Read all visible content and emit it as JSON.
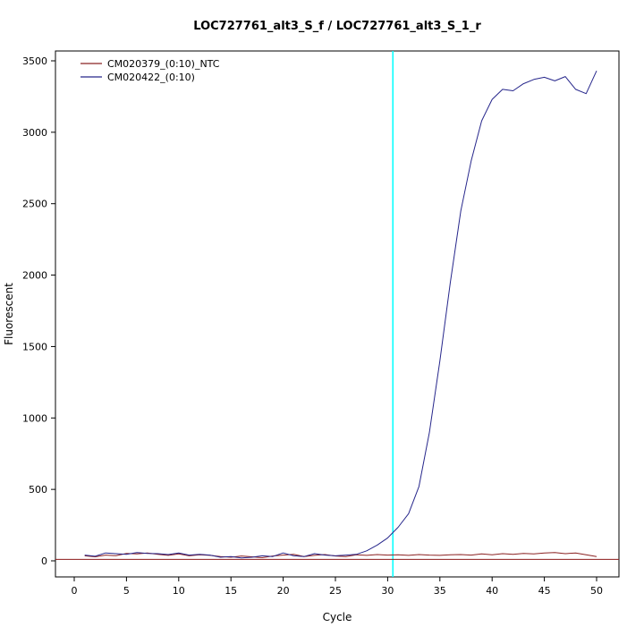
{
  "chart_data": {
    "type": "line",
    "title": "LOC727761_alt3_S_f / LOC727761_alt3_S_1_r",
    "xlabel": "Cycle",
    "ylabel": "Fluorescent",
    "xlim": [
      0,
      50
    ],
    "ylim": [
      0,
      3500
    ],
    "x_ticks": [
      0,
      5,
      10,
      15,
      20,
      25,
      30,
      35,
      40,
      45,
      50
    ],
    "y_ticks": [
      0,
      500,
      1000,
      1500,
      2000,
      2500,
      3000,
      3500
    ],
    "grid": false,
    "legend_position": "top-left",
    "threshold_cycle_line": {
      "x": 30.5,
      "color": "#00FFFF"
    },
    "baseline_threshold_line": {
      "y": 10,
      "color": "#8B1A1A"
    },
    "x": [
      1,
      2,
      3,
      4,
      5,
      6,
      7,
      8,
      9,
      10,
      11,
      12,
      13,
      14,
      15,
      16,
      17,
      18,
      19,
      20,
      21,
      22,
      23,
      24,
      25,
      26,
      27,
      28,
      29,
      30,
      31,
      32,
      33,
      34,
      35,
      36,
      37,
      38,
      39,
      40,
      41,
      42,
      43,
      44,
      45,
      46,
      47,
      48,
      49,
      50
    ],
    "series": [
      {
        "name": "CM020379_(0:10)_NTC",
        "color": "#8B2323",
        "values": [
          35,
          28,
          40,
          36,
          52,
          48,
          55,
          45,
          38,
          48,
          35,
          42,
          38,
          30,
          25,
          34,
          28,
          22,
          34,
          40,
          46,
          30,
          38,
          44,
          34,
          30,
          42,
          38,
          44,
          40,
          42,
          38,
          44,
          40,
          38,
          42,
          44,
          40,
          48,
          42,
          50,
          45,
          52,
          48,
          55,
          58,
          50,
          55,
          42,
          30
        ]
      },
      {
        "name": "CM020422_(0:10)",
        "color": "#26268B",
        "values": [
          40,
          32,
          55,
          50,
          45,
          58,
          52,
          50,
          44,
          55,
          40,
          45,
          40,
          25,
          30,
          20,
          25,
          35,
          30,
          55,
          35,
          30,
          50,
          40,
          35,
          40,
          45,
          70,
          110,
          160,
          235,
          330,
          520,
          900,
          1400,
          1950,
          2450,
          2800,
          3080,
          3230,
          3300,
          3290,
          3340,
          3370,
          3385,
          3360,
          3390,
          3300,
          3270,
          3430
        ]
      }
    ]
  }
}
